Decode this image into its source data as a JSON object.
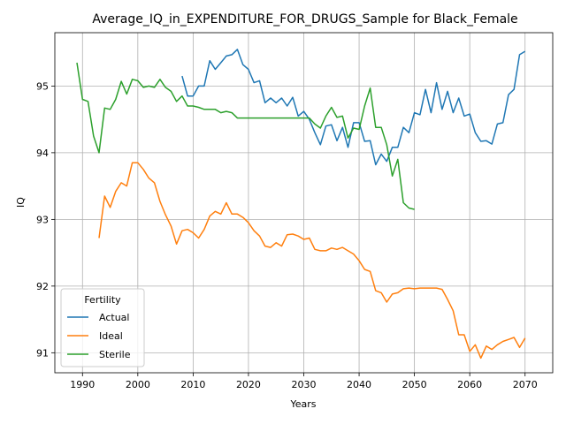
{
  "chart_data": {
    "type": "line",
    "title": "Average_IQ_in_EXPENDITURE_FOR_DRUGS_Sample for Black_Female",
    "xlabel": "Years",
    "ylabel": "IQ",
    "xlim": [
      1985,
      2075
    ],
    "ylim": [
      90.7,
      95.8
    ],
    "xticks": [
      1990,
      2000,
      2010,
      2020,
      2030,
      2040,
      2050,
      2060,
      2070
    ],
    "yticks": [
      91,
      92,
      93,
      94,
      95
    ],
    "grid": true,
    "legend": {
      "title": "Fertility",
      "placement": "lower-left"
    },
    "series": [
      {
        "name": "Actual",
        "color": "#1f77b4",
        "x": [
          2008,
          2009,
          2010,
          2011,
          2012,
          2013,
          2014,
          2015,
          2016,
          2017,
          2018,
          2019,
          2020,
          2021,
          2022,
          2023,
          2024,
          2025,
          2026,
          2027,
          2028,
          2029,
          2030,
          2031,
          2032,
          2033,
          2034,
          2035,
          2036,
          2037,
          2038,
          2039,
          2040,
          2041,
          2042,
          2043,
          2044,
          2045,
          2046,
          2047,
          2048,
          2049,
          2050,
          2051,
          2052,
          2053,
          2054,
          2055,
          2056,
          2057,
          2058,
          2059,
          2060,
          2061,
          2062,
          2063,
          2064,
          2065,
          2066,
          2067,
          2068,
          2069,
          2070
        ],
        "values": [
          95.15,
          94.85,
          94.85,
          95.0,
          95.0,
          95.38,
          95.25,
          95.35,
          95.45,
          95.47,
          95.55,
          95.32,
          95.25,
          95.05,
          95.08,
          94.75,
          94.82,
          94.75,
          94.82,
          94.7,
          94.83,
          94.55,
          94.62,
          94.5,
          94.3,
          94.12,
          94.4,
          94.42,
          94.18,
          94.38,
          94.08,
          94.45,
          94.45,
          94.17,
          94.18,
          93.82,
          93.98,
          93.87,
          94.08,
          94.08,
          94.38,
          94.3,
          94.6,
          94.57,
          94.95,
          94.6,
          95.05,
          94.65,
          94.92,
          94.6,
          94.82,
          94.55,
          94.58,
          94.3,
          94.17,
          94.18,
          94.13,
          94.43,
          94.45,
          94.87,
          94.95,
          95.47,
          95.52
        ]
      },
      {
        "name": "Ideal",
        "color": "#ff7f0e",
        "x": [
          1993,
          1994,
          1995,
          1996,
          1997,
          1998,
          1999,
          2000,
          2001,
          2002,
          2003,
          2004,
          2005,
          2006,
          2007,
          2008,
          2009,
          2010,
          2011,
          2012,
          2013,
          2014,
          2015,
          2016,
          2017,
          2018,
          2019,
          2020,
          2021,
          2022,
          2023,
          2024,
          2025,
          2026,
          2027,
          2028,
          2029,
          2030,
          2031,
          2032,
          2033,
          2034,
          2035,
          2036,
          2037,
          2038,
          2039,
          2040,
          2041,
          2042,
          2043,
          2044,
          2045,
          2046,
          2047,
          2048,
          2049,
          2050,
          2051,
          2052,
          2053,
          2054,
          2055,
          2056,
          2057,
          2058,
          2059,
          2060,
          2061,
          2062,
          2063,
          2064,
          2065,
          2066,
          2067,
          2068,
          2069,
          2070
        ],
        "values": [
          92.72,
          93.35,
          93.18,
          93.42,
          93.55,
          93.5,
          93.85,
          93.85,
          93.75,
          93.62,
          93.55,
          93.27,
          93.07,
          92.9,
          92.63,
          92.83,
          92.85,
          92.8,
          92.72,
          92.85,
          93.05,
          93.12,
          93.08,
          93.25,
          93.08,
          93.08,
          93.03,
          92.95,
          92.83,
          92.75,
          92.6,
          92.58,
          92.65,
          92.6,
          92.77,
          92.78,
          92.75,
          92.7,
          92.72,
          92.55,
          92.53,
          92.53,
          92.57,
          92.55,
          92.58,
          92.53,
          92.48,
          92.38,
          92.25,
          92.22,
          91.93,
          91.9,
          91.76,
          91.88,
          91.9,
          91.96,
          91.97,
          91.96,
          91.97,
          91.97,
          91.97,
          91.97,
          91.95,
          91.8,
          91.63,
          91.27,
          91.27,
          91.02,
          91.12,
          90.92,
          91.1,
          91.05,
          91.12,
          91.17,
          91.2,
          91.23,
          91.08,
          91.22
        ]
      },
      {
        "name": "Sterile",
        "color": "#2ca02c",
        "x": [
          1989,
          1990,
          1991,
          1992,
          1993,
          1994,
          1995,
          1996,
          1997,
          1998,
          1999,
          2000,
          2001,
          2002,
          2003,
          2004,
          2005,
          2006,
          2007,
          2008,
          2009,
          2010,
          2011,
          2012,
          2013,
          2014,
          2015,
          2016,
          2017,
          2018,
          2019,
          2020,
          2021,
          2022,
          2023,
          2024,
          2025,
          2026,
          2027,
          2028,
          2029,
          2030,
          2031,
          2032,
          2033,
          2034,
          2035,
          2036,
          2037,
          2038,
          2039,
          2040,
          2041,
          2042,
          2043,
          2044,
          2045,
          2046,
          2047,
          2048,
          2049,
          2050
        ],
        "values": [
          95.35,
          94.8,
          94.77,
          94.25,
          94.0,
          94.67,
          94.65,
          94.8,
          95.07,
          94.88,
          95.1,
          95.08,
          94.98,
          95.0,
          94.98,
          95.1,
          94.98,
          94.92,
          94.77,
          94.85,
          94.7,
          94.7,
          94.68,
          94.65,
          94.65,
          94.65,
          94.6,
          94.62,
          94.6,
          94.52,
          94.52,
          94.52,
          94.52,
          94.52,
          94.52,
          94.52,
          94.52,
          94.52,
          94.52,
          94.52,
          94.52,
          94.52,
          94.52,
          94.43,
          94.37,
          94.55,
          94.68,
          94.53,
          94.55,
          94.22,
          94.37,
          94.35,
          94.7,
          94.97,
          94.38,
          94.38,
          94.12,
          93.65,
          93.9,
          93.25,
          93.17,
          93.15
        ]
      }
    ]
  }
}
